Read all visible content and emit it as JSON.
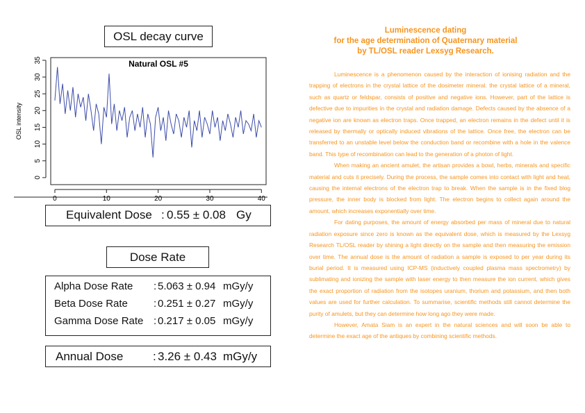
{
  "chart_data": {
    "type": "line",
    "title": "Natural OSL #5",
    "y_label": "OSL intensity",
    "color": "#3b4ba8",
    "x": [
      0,
      0.5,
      1,
      1.5,
      2,
      2.5,
      3,
      3.5,
      4,
      4.5,
      5,
      5.5,
      6,
      6.5,
      7,
      7.5,
      8,
      8.5,
      9,
      9.5,
      10,
      10.5,
      11,
      11.5,
      12,
      12.5,
      13,
      13.5,
      14,
      14.5,
      15,
      15.5,
      16,
      16.5,
      17,
      17.5,
      18,
      18.5,
      19,
      19.5,
      20,
      20.5,
      21,
      21.5,
      22,
      22.5,
      23,
      23.5,
      24,
      24.5,
      25,
      25.5,
      26,
      26.5,
      27,
      27.5,
      28,
      28.5,
      29,
      29.5,
      30,
      30.5,
      31,
      31.5,
      32,
      32.5,
      33,
      33.5,
      34,
      34.5,
      35,
      35.5,
      36,
      36.5,
      37,
      37.5,
      38,
      38.5,
      39,
      39.5,
      40
    ],
    "values": [
      23,
      33,
      22,
      28,
      19,
      26,
      20,
      27,
      18,
      25,
      21,
      24,
      17,
      25,
      20,
      14,
      22,
      19,
      10,
      21,
      18,
      31,
      16,
      22,
      14,
      20,
      17,
      21,
      12,
      18,
      20,
      14,
      19,
      15,
      21,
      12,
      19,
      16,
      6,
      18,
      21,
      14,
      18,
      11,
      20,
      16,
      13,
      19,
      17,
      12,
      18,
      15,
      20,
      9,
      17,
      14,
      20,
      12,
      18,
      16,
      13,
      20,
      15,
      18,
      11,
      17,
      14,
      19,
      16,
      12,
      18,
      15,
      20,
      13,
      17,
      16,
      14,
      19,
      12,
      17,
      15
    ],
    "xlim": [
      -0.8,
      40.9
    ],
    "ylim": [
      -2.1,
      35.8
    ],
    "xticks": [
      0,
      10,
      20,
      30,
      40
    ],
    "yticks": [
      0,
      5,
      10,
      15,
      20,
      25,
      30,
      35
    ]
  },
  "left": {
    "title": "OSL decay curve",
    "equivalent_dose": {
      "label": "Equivalent Dose",
      "separator": ":",
      "value": "0.55 ± 0.08",
      "unit": "Gy"
    },
    "dose_rate_title": "Dose Rate",
    "dose_rates": [
      {
        "label": "Alpha Dose Rate",
        "separator": ":",
        "value": "5.063 ± 0.94",
        "unit": "mGy/y"
      },
      {
        "label": "Beta Dose Rate",
        "separator": ":",
        "value": "0.251 ± 0.27",
        "unit": "mGy/y"
      },
      {
        "label": "Gamma Dose Rate",
        "separator": ":",
        "value": "0.217 ± 0.05",
        "unit": "mGy/y"
      }
    ],
    "annual_dose": {
      "label": "Annual Dose",
      "separator": ":",
      "value": "3.26 ± 0.43",
      "unit": "mGy/y"
    }
  },
  "right": {
    "title": [
      "Luminescence dating",
      "for the age determination of Quaternary material",
      "by TL/OSL reader Lexsyg Research."
    ],
    "paragraphs": [
      "Luminescence is a phenomenon caused by the interaction of ionising radiation and the trapping of electrons in the crystal lattice of the dosimeter mineral. the crystal lattice of a mineral, such as quartz or feldspar, consists of positive and negative ions. However, part of the lattice is defective due to impurities in the crystal and radiation damage. Defects caused by the absence of a negative ion are known as electron traps. Once trapped, an electron remains in the defect until it is released by thermally or optically induced vibrations of the lattice. Once free, the electron can be transferred to an unstable level below the conduction band or recombine with a hole in the valence band. This type of recombination can lead to the generation of a photon of light.",
      "When making an ancient amulet, the artisan provides a bowl, herbs, minerals and specific material and cuts it precisely. During the process, the sample comes into contact with light and heat, causing the internal electrons of the electron trap to break. When the sample is in the fixed blog pressure, the inner body is blocked from light. The electron begins to collect again around the amount, which increases exponentially over time.",
      "For dating purposes, the amount of energy absorbed per mass of mineral due to natural radiation exposure since zero is known as the equivalent dose, which is measured by the Lexsyg Research TL/OSL reader by shining a light directly on the sample and then measuring the emission over time. The annual dose is the amount of radiation a sample is exposed to per year during its burial period. It is measured using ICP-MS (inductively coupled plasma mass spectrometry) by sublimating and ionizing the sample with laser energy to then measure the ion current, which gives the exact proportion of radiation from the isotopes uranium, thorium and potassium, and then both values are used for further calculation. To summarise, scientific methods still cannot determine the purity of amulets, but they can determine how long ago they were made.",
      "However, Amata Siam is an expert in the natural sciences and will soon be able to determine the exact age of the antiques by combining scientific methods."
    ]
  }
}
